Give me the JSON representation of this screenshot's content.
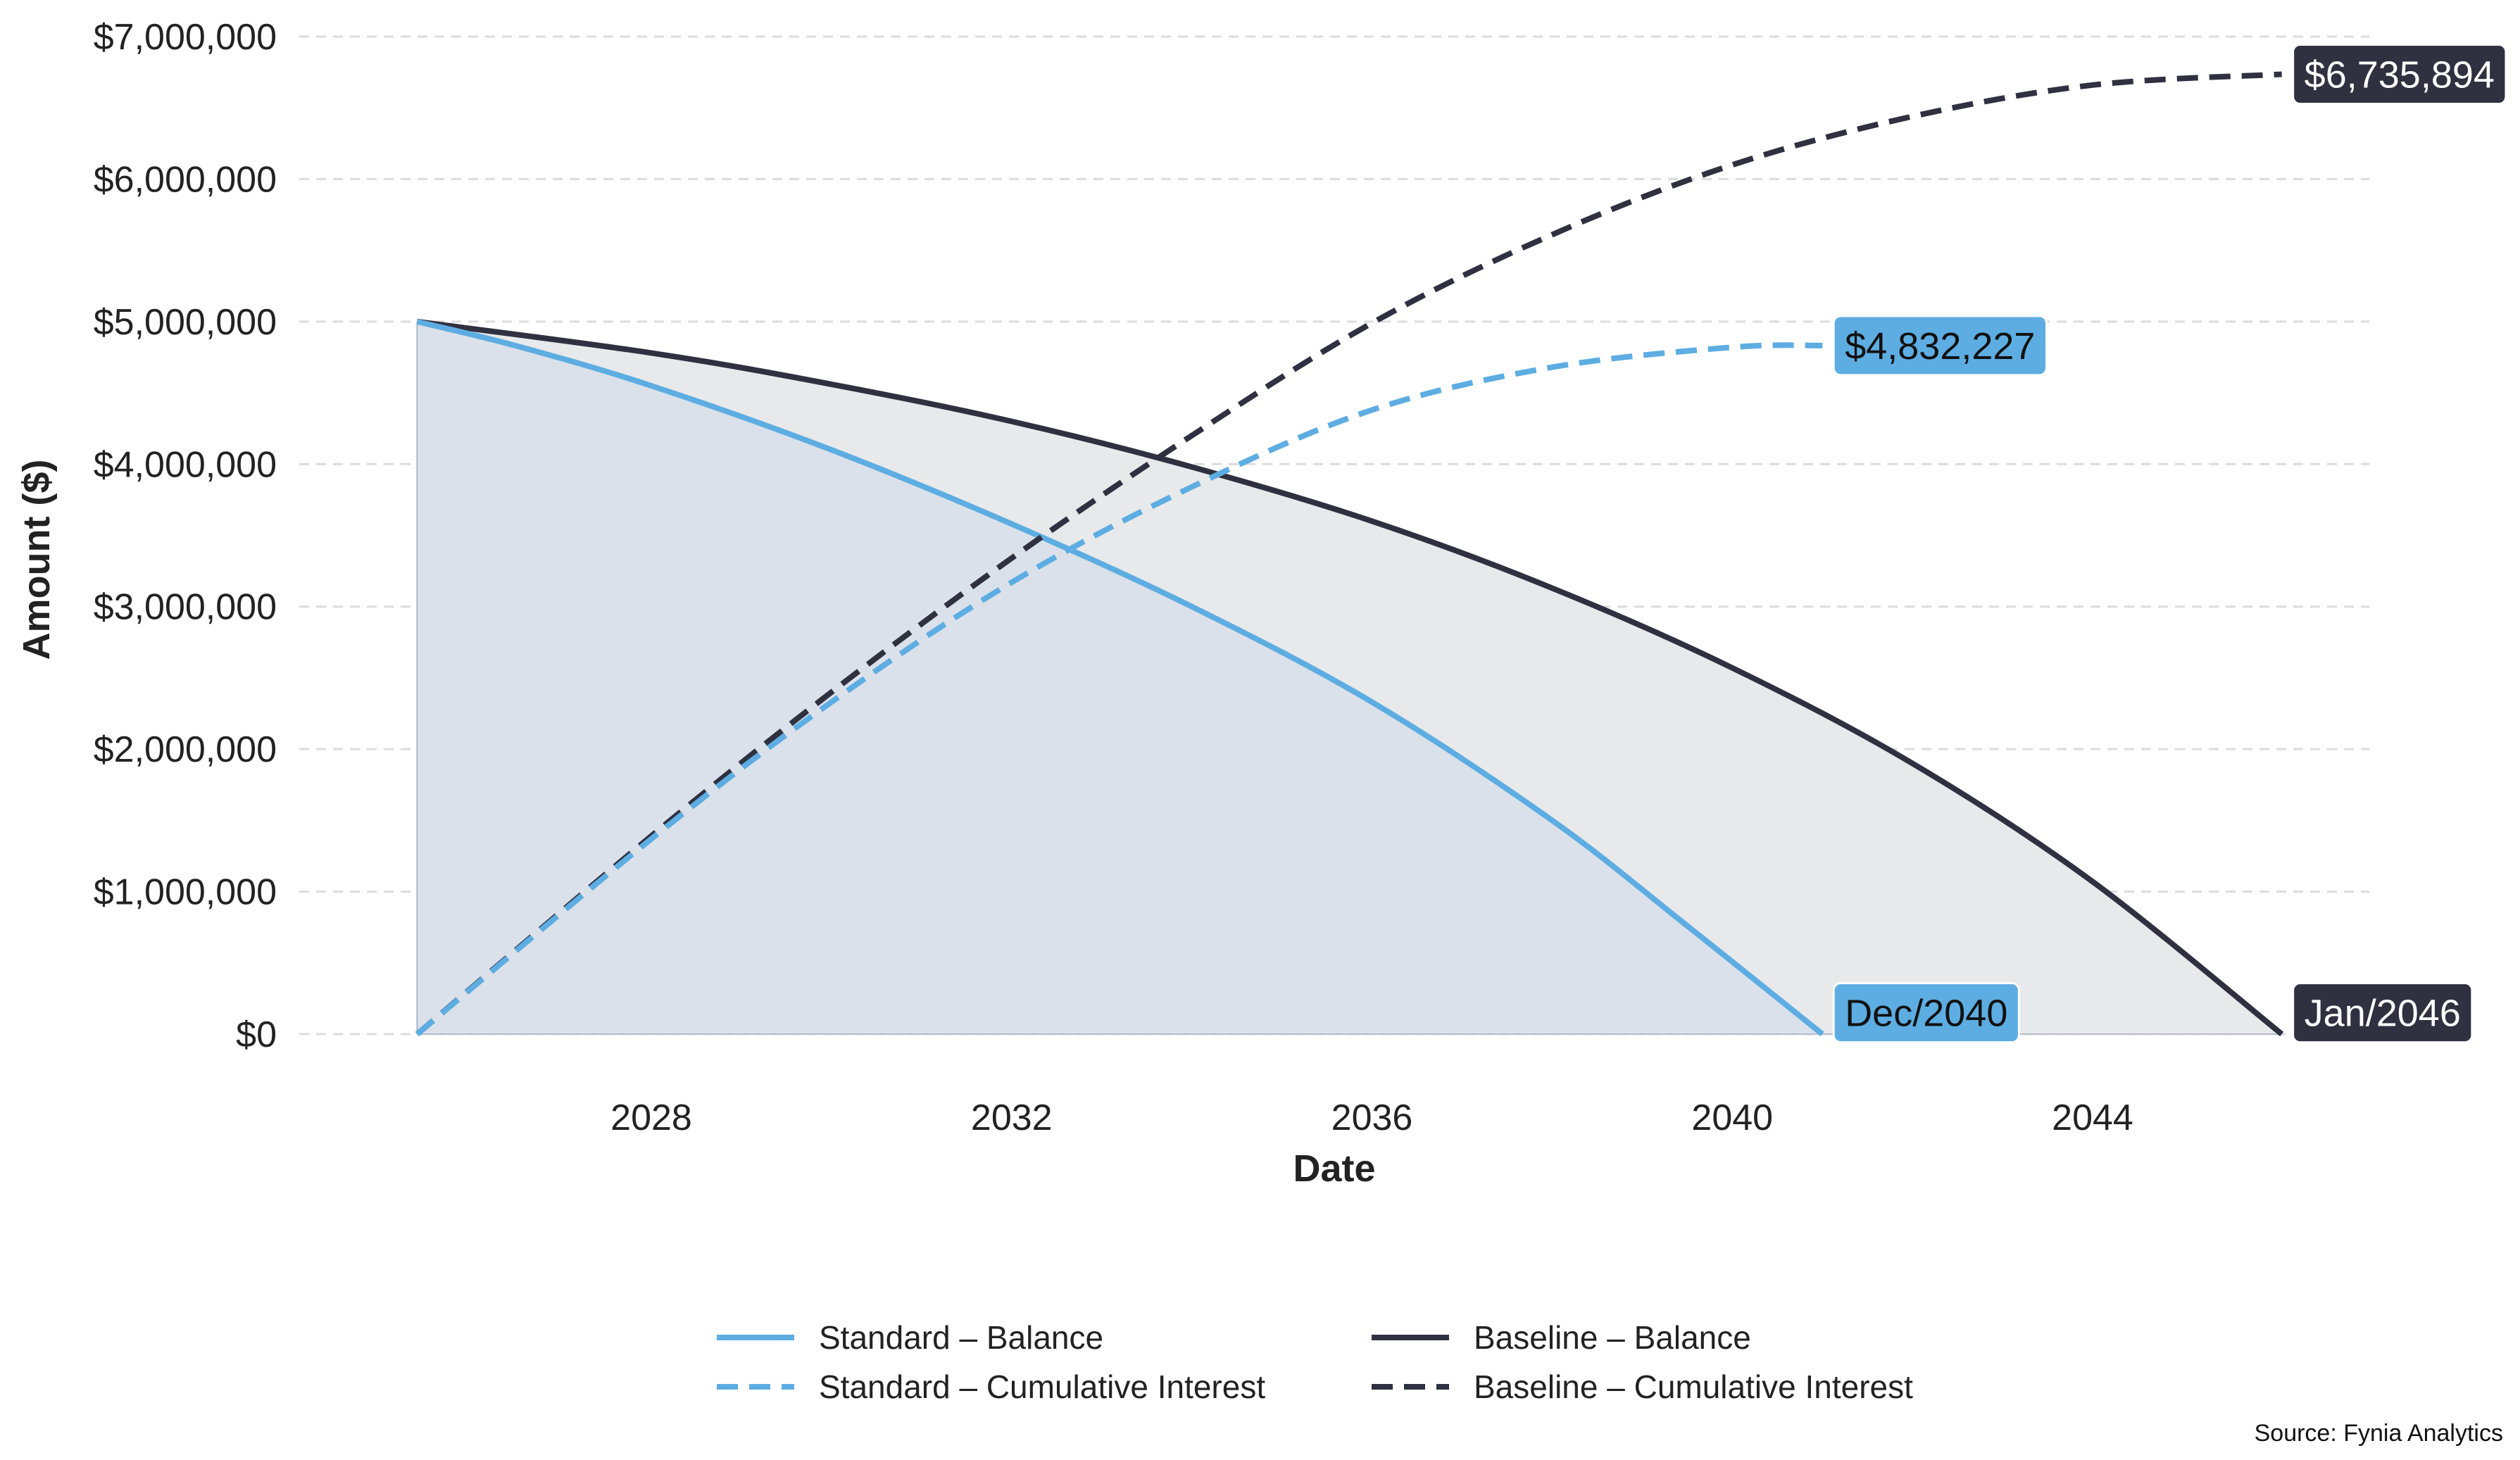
{
  "chart_data": {
    "type": "line",
    "xlabel": "Date",
    "ylabel": "Amount ($)",
    "xlim": [
      2024.6,
      2047.6
    ],
    "ylim": [
      -300000,
      7000000
    ],
    "x_ticks": [
      2028,
      2032,
      2036,
      2040,
      2044
    ],
    "x_tick_labels": [
      "2028",
      "2032",
      "2036",
      "2040",
      "2044"
    ],
    "y_ticks": [
      0,
      1000000,
      2000000,
      3000000,
      4000000,
      5000000,
      6000000,
      7000000
    ],
    "y_tick_labels": [
      "$0",
      "$1,000,000",
      "$2,000,000",
      "$3,000,000",
      "$4,000,000",
      "$5,000,000",
      "$6,000,000",
      "$7,000,000"
    ],
    "grid": "horizontal dashed",
    "legend_position": "bottom-center",
    "series": [
      {
        "name": "Standard – Balance",
        "color": "#5dade2",
        "style": "solid",
        "fill": "#dbe1ea",
        "x": [
          2025.4,
          2026.5,
          2028,
          2030,
          2032,
          2034,
          2036,
          2038,
          2039.5,
          2041.0
        ],
        "values": [
          5000000,
          4830000,
          4550000,
          4100000,
          3580000,
          3000000,
          2330000,
          1500000,
          760000,
          0
        ]
      },
      {
        "name": "Standard – Cumulative Interest",
        "color": "#5dade2",
        "style": "dashed",
        "x": [
          2025.4,
          2028,
          2030,
          2032,
          2034,
          2036,
          2038,
          2040,
          2041.0
        ],
        "values": [
          0,
          1370000,
          2330000,
          3170000,
          3840000,
          4380000,
          4680000,
          4820000,
          4832227
        ]
      },
      {
        "name": "Baseline – Balance",
        "color": "#2f3040",
        "style": "solid",
        "fill": "#e8e9eb",
        "x": [
          2025.4,
          2028,
          2030,
          2032,
          2034,
          2036,
          2038,
          2040,
          2042,
          2044,
          2046.1
        ],
        "values": [
          5000000,
          4780000,
          4560000,
          4300000,
          3980000,
          3600000,
          3130000,
          2570000,
          1900000,
          1070000,
          0
        ]
      },
      {
        "name": "Baseline – Cumulative Interest",
        "color": "#2f3040",
        "style": "dashed",
        "x": [
          2025.4,
          2028,
          2030,
          2032,
          2034,
          2036,
          2038,
          2040,
          2042,
          2044,
          2046.1
        ],
        "values": [
          0,
          1390000,
          2400000,
          3340000,
          4200000,
          4990000,
          5610000,
          6100000,
          6440000,
          6660000,
          6735894
        ]
      }
    ],
    "annotations": [
      {
        "text": "$4,832,227",
        "x": 2041.0,
        "y": 4832227,
        "bg": "#5dade2",
        "fg": "#111111"
      },
      {
        "text": "$6,735,894",
        "x": 2046.1,
        "y": 6735894,
        "bg": "#2f3040",
        "fg": "#ffffff"
      },
      {
        "text": "Dec/2040",
        "x": 2041.0,
        "y": 150000,
        "bg": "#5dade2",
        "fg": "#111111"
      },
      {
        "text": "Jan/2046",
        "x": 2046.1,
        "y": 150000,
        "bg": "#2f3040",
        "fg": "#ffffff"
      }
    ]
  },
  "source": "Source: Fynia Analytics"
}
